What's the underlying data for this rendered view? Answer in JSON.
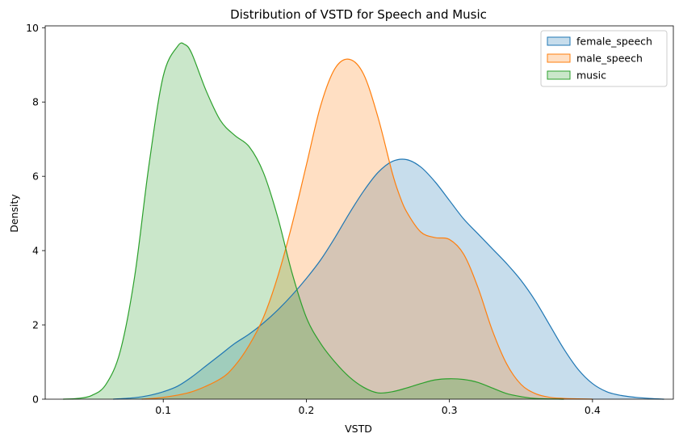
{
  "chart_data": {
    "type": "area",
    "title": "Distribution of VSTD for Speech and Music",
    "xlabel": "VSTD",
    "ylabel": "Density",
    "xlim": [
      0.0175,
      0.4565
    ],
    "ylim": [
      0,
      10.05
    ],
    "xticks": [
      0.1,
      0.2,
      0.3,
      0.4
    ],
    "xtick_labels": [
      "0.1",
      "0.2",
      "0.3",
      "0.4"
    ],
    "yticks": [
      0,
      2,
      4,
      6,
      8,
      10
    ],
    "ytick_labels": [
      "0",
      "2",
      "4",
      "6",
      "8",
      "10"
    ],
    "grid": false,
    "legend_position": "top-right",
    "series": [
      {
        "name": "female_speech",
        "color": "#1f77b4",
        "x": [
          0.065,
          0.08,
          0.09,
          0.1,
          0.11,
          0.12,
          0.13,
          0.14,
          0.15,
          0.16,
          0.17,
          0.18,
          0.19,
          0.2,
          0.21,
          0.22,
          0.23,
          0.24,
          0.25,
          0.26,
          0.27,
          0.28,
          0.29,
          0.3,
          0.31,
          0.32,
          0.33,
          0.34,
          0.35,
          0.36,
          0.37,
          0.38,
          0.39,
          0.4,
          0.41,
          0.42,
          0.43,
          0.44,
          0.45
        ],
        "y": [
          0.0,
          0.04,
          0.1,
          0.2,
          0.35,
          0.6,
          0.9,
          1.2,
          1.5,
          1.75,
          2.05,
          2.4,
          2.8,
          3.25,
          3.75,
          4.35,
          5.0,
          5.6,
          6.1,
          6.4,
          6.45,
          6.25,
          5.85,
          5.35,
          4.85,
          4.45,
          4.05,
          3.65,
          3.2,
          2.65,
          2.0,
          1.35,
          0.8,
          0.42,
          0.2,
          0.1,
          0.05,
          0.02,
          0.0
        ]
      },
      {
        "name": "male_speech",
        "color": "#ff7f0e",
        "x": [
          0.085,
          0.1,
          0.12,
          0.14,
          0.15,
          0.16,
          0.17,
          0.18,
          0.19,
          0.2,
          0.21,
          0.22,
          0.23,
          0.24,
          0.25,
          0.26,
          0.265,
          0.27,
          0.28,
          0.29,
          0.3,
          0.31,
          0.32,
          0.33,
          0.34,
          0.35,
          0.36,
          0.37,
          0.38,
          0.39,
          0.4
        ],
        "y": [
          0.0,
          0.05,
          0.2,
          0.55,
          0.9,
          1.45,
          2.2,
          3.3,
          4.7,
          6.3,
          7.9,
          8.9,
          9.15,
          8.75,
          7.6,
          6.1,
          5.5,
          5.05,
          4.5,
          4.35,
          4.3,
          3.9,
          3.0,
          1.85,
          0.95,
          0.4,
          0.15,
          0.05,
          0.02,
          0.01,
          0.0
        ]
      },
      {
        "name": "music",
        "color": "#2ca02c",
        "x": [
          0.03,
          0.04,
          0.05,
          0.06,
          0.07,
          0.08,
          0.09,
          0.1,
          0.11,
          0.115,
          0.12,
          0.13,
          0.14,
          0.15,
          0.16,
          0.17,
          0.18,
          0.19,
          0.2,
          0.21,
          0.22,
          0.23,
          0.24,
          0.25,
          0.26,
          0.27,
          0.28,
          0.29,
          0.3,
          0.31,
          0.32,
          0.33,
          0.34,
          0.35,
          0.36,
          0.38
        ],
        "y": [
          0.0,
          0.02,
          0.1,
          0.4,
          1.3,
          3.3,
          6.3,
          8.7,
          9.5,
          9.55,
          9.3,
          8.3,
          7.5,
          7.1,
          6.8,
          6.1,
          4.9,
          3.4,
          2.2,
          1.5,
          1.0,
          0.6,
          0.32,
          0.17,
          0.2,
          0.3,
          0.42,
          0.52,
          0.55,
          0.53,
          0.45,
          0.3,
          0.15,
          0.07,
          0.02,
          0.0
        ]
      }
    ]
  }
}
